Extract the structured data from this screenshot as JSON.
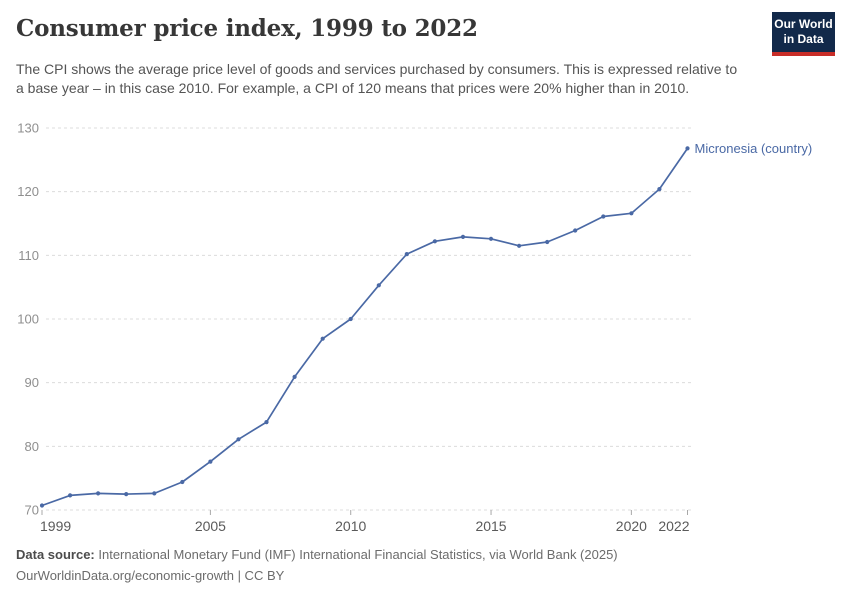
{
  "header": {
    "title": "Consumer price index, 1999 to 2022",
    "subtitle": "The CPI shows the average price level of goods and services purchased by consumers. This is expressed relative to a base year – in this case 2010. For example, a CPI of 120 means that prices were 20% higher than in 2010.",
    "logo": {
      "line1": "Our World",
      "line2": "in Data"
    }
  },
  "chart_data": {
    "type": "line",
    "title": "Consumer price index, 1999 to 2022",
    "xlabel": "",
    "ylabel": "",
    "x": [
      1999,
      2000,
      2001,
      2002,
      2003,
      2004,
      2005,
      2006,
      2007,
      2008,
      2009,
      2010,
      2011,
      2012,
      2013,
      2014,
      2015,
      2016,
      2017,
      2018,
      2019,
      2020,
      2021,
      2022
    ],
    "series": [
      {
        "name": "Micronesia (country)",
        "color": "#4a69a5",
        "values": [
          70.7,
          72.3,
          72.6,
          72.5,
          72.6,
          74.4,
          77.6,
          81.1,
          83.8,
          90.9,
          96.9,
          100.0,
          105.3,
          110.2,
          112.2,
          112.9,
          112.6,
          111.5,
          112.1,
          113.9,
          116.1,
          116.6,
          120.4,
          126.8
        ]
      }
    ],
    "xlim": [
      1999,
      2022
    ],
    "ylim": [
      70,
      130
    ],
    "xticks": [
      1999,
      2005,
      2010,
      2015,
      2020,
      2022
    ],
    "yticks": [
      70,
      80,
      90,
      100,
      110,
      120,
      130
    ],
    "grid": "horizontal-dashed",
    "legend_position": "end-of-line-label"
  },
  "footer": {
    "datasource_label": "Data source:",
    "datasource_text": " International Monetary Fund (IMF) International Financial Statistics, via World Bank (2025)",
    "link_line": "OurWorldinData.org/economic-growth | CC BY"
  },
  "colors": {
    "line": "#4a69a5",
    "grid": "#dcdcdc",
    "tick": "#a8a8a8",
    "y_label": "#8f8f8f",
    "x_label": "#5a5a5a",
    "title": "#373737",
    "subtitle": "#545454",
    "logo_bg": "#12294a",
    "logo_underline": "#c82d28"
  }
}
